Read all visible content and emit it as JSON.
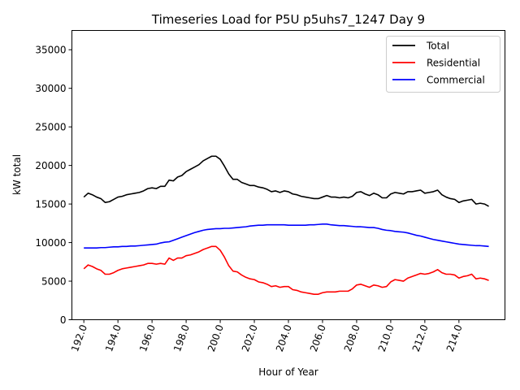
{
  "chart_data": {
    "type": "line",
    "title": "Timeseries Load for P5U p5uhs7_1247  Day 9",
    "xlabel": "Hour of Year",
    "ylabel": "kW total",
    "xlim": [
      191.3,
      216.7
    ],
    "ylim": [
      0,
      37500
    ],
    "xticks": [
      192.0,
      194.0,
      196.0,
      198.0,
      200.0,
      202.0,
      204.0,
      206.0,
      208.0,
      210.0,
      212.0,
      214.0
    ],
    "xtick_labels": [
      "192.0",
      "194.0",
      "196.0",
      "198.0",
      "200.0",
      "202.0",
      "204.0",
      "206.0",
      "208.0",
      "210.0",
      "212.0",
      "214.0"
    ],
    "yticks": [
      0,
      5000,
      10000,
      15000,
      20000,
      25000,
      30000,
      35000
    ],
    "ytick_labels": [
      "0",
      "5000",
      "10000",
      "15000",
      "20000",
      "25000",
      "30000",
      "35000"
    ],
    "legend_position": "top-right",
    "x": [
      192.0,
      192.25,
      192.5,
      192.75,
      193.0,
      193.25,
      193.5,
      193.75,
      194.0,
      194.25,
      194.5,
      194.75,
      195.0,
      195.25,
      195.5,
      195.75,
      196.0,
      196.25,
      196.5,
      196.75,
      197.0,
      197.25,
      197.5,
      197.75,
      198.0,
      198.25,
      198.5,
      198.75,
      199.0,
      199.25,
      199.5,
      199.75,
      200.0,
      200.25,
      200.5,
      200.75,
      201.0,
      201.25,
      201.5,
      201.75,
      202.0,
      202.25,
      202.5,
      202.75,
      203.0,
      203.25,
      203.5,
      203.75,
      204.0,
      204.25,
      204.5,
      204.75,
      205.0,
      205.25,
      205.5,
      205.75,
      206.0,
      206.25,
      206.5,
      206.75,
      207.0,
      207.25,
      207.5,
      207.75,
      208.0,
      208.25,
      208.5,
      208.75,
      209.0,
      209.25,
      209.5,
      209.75,
      210.0,
      210.25,
      210.5,
      210.75,
      211.0,
      211.25,
      211.5,
      211.75,
      212.0,
      212.25,
      212.5,
      212.75,
      213.0,
      213.25,
      213.5,
      213.75,
      214.0,
      214.25,
      214.5,
      214.75,
      215.0,
      215.25,
      215.5,
      215.75
    ],
    "series": [
      {
        "name": "Total",
        "color": "#000000",
        "values": [
          15900,
          16400,
          16200,
          15900,
          15700,
          15200,
          15300,
          15600,
          15900,
          16000,
          16200,
          16300,
          16400,
          16500,
          16700,
          17000,
          17100,
          17000,
          17300,
          17300,
          18100,
          18000,
          18500,
          18700,
          19200,
          19500,
          19800,
          20100,
          20600,
          20900,
          21200,
          21200,
          20800,
          19900,
          18900,
          18200,
          18200,
          17800,
          17600,
          17400,
          17400,
          17200,
          17100,
          16900,
          16600,
          16700,
          16500,
          16700,
          16600,
          16300,
          16200,
          16000,
          15900,
          15800,
          15700,
          15700,
          15900,
          16100,
          15900,
          15900,
          15800,
          15900,
          15800,
          16000,
          16500,
          16600,
          16300,
          16100,
          16400,
          16200,
          15800,
          15800,
          16300,
          16500,
          16400,
          16300,
          16600,
          16600,
          16700,
          16800,
          16400,
          16500,
          16600,
          16800,
          16200,
          15900,
          15700,
          15600,
          15200,
          15400,
          15500,
          15600,
          15000,
          15100,
          15000,
          14700
        ]
      },
      {
        "name": "Residential",
        "color": "#ff0000",
        "values": [
          6600,
          7100,
          6900,
          6600,
          6400,
          5900,
          5900,
          6100,
          6400,
          6600,
          6700,
          6800,
          6900,
          7000,
          7100,
          7300,
          7300,
          7200,
          7300,
          7200,
          8000,
          7700,
          8000,
          8000,
          8300,
          8400,
          8600,
          8800,
          9100,
          9300,
          9500,
          9500,
          9000,
          8100,
          7000,
          6300,
          6200,
          5800,
          5500,
          5300,
          5200,
          4900,
          4800,
          4600,
          4300,
          4400,
          4200,
          4300,
          4300,
          3900,
          3800,
          3600,
          3500,
          3400,
          3300,
          3300,
          3500,
          3600,
          3600,
          3600,
          3700,
          3700,
          3700,
          4000,
          4500,
          4600,
          4400,
          4200,
          4500,
          4400,
          4200,
          4300,
          4900,
          5200,
          5100,
          5000,
          5400,
          5600,
          5800,
          6000,
          5900,
          6000,
          6200,
          6500,
          6100,
          5900,
          5900,
          5800,
          5400,
          5600,
          5700,
          5900,
          5300,
          5400,
          5300,
          5100
        ]
      },
      {
        "name": "Commercial",
        "color": "#0000ff",
        "values": [
          9300,
          9300,
          9300,
          9300,
          9350,
          9350,
          9400,
          9450,
          9450,
          9500,
          9500,
          9550,
          9550,
          9600,
          9650,
          9700,
          9750,
          9800,
          9950,
          10050,
          10100,
          10300,
          10500,
          10700,
          10900,
          11100,
          11300,
          11450,
          11600,
          11700,
          11750,
          11800,
          11800,
          11850,
          11850,
          11900,
          11950,
          12000,
          12050,
          12150,
          12200,
          12250,
          12250,
          12300,
          12300,
          12300,
          12300,
          12300,
          12250,
          12250,
          12250,
          12250,
          12250,
          12300,
          12300,
          12350,
          12400,
          12400,
          12300,
          12250,
          12200,
          12200,
          12150,
          12100,
          12050,
          12050,
          12000,
          11950,
          11950,
          11850,
          11700,
          11600,
          11550,
          11450,
          11400,
          11350,
          11250,
          11100,
          10950,
          10850,
          10700,
          10550,
          10400,
          10300,
          10200,
          10100,
          10000,
          9900,
          9800,
          9750,
          9700,
          9650,
          9600,
          9600,
          9550,
          9500
        ]
      }
    ]
  }
}
